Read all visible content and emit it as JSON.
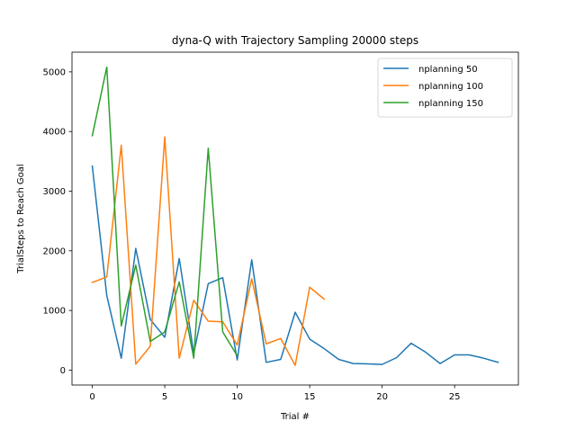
{
  "chart_data": {
    "type": "line",
    "title": "dyna-Q with Trajectory Sampling 20000 steps",
    "xlabel": "Trial #",
    "ylabel": "TrialSteps to Reach Goal",
    "xlim": [
      -1.4,
      29.4
    ],
    "ylim": [
      -250,
      5330
    ],
    "xticks": [
      0,
      5,
      10,
      15,
      20,
      25
    ],
    "yticks": [
      0,
      1000,
      2000,
      3000,
      4000,
      5000
    ],
    "legend_position": "top-right",
    "series": [
      {
        "name": "nplanning 50",
        "color": "#1f77b4",
        "values": [
          3420,
          1250,
          200,
          2040,
          850,
          550,
          1870,
          280,
          1450,
          1550,
          170,
          1850,
          130,
          180,
          970,
          520,
          360,
          180,
          110,
          105,
          95,
          210,
          450,
          300,
          110,
          255,
          255,
          200,
          130
        ]
      },
      {
        "name": "nplanning 100",
        "color": "#ff7f0e",
        "values": [
          1470,
          1560,
          3770,
          100,
          400,
          3910,
          200,
          1170,
          820,
          810,
          420,
          1530,
          440,
          530,
          80,
          1390,
          1190
        ]
      },
      {
        "name": "nplanning 150",
        "color": "#2ca02c",
        "values": [
          3930,
          5080,
          740,
          1760,
          480,
          640,
          1480,
          200,
          3720,
          640,
          240
        ]
      }
    ]
  }
}
